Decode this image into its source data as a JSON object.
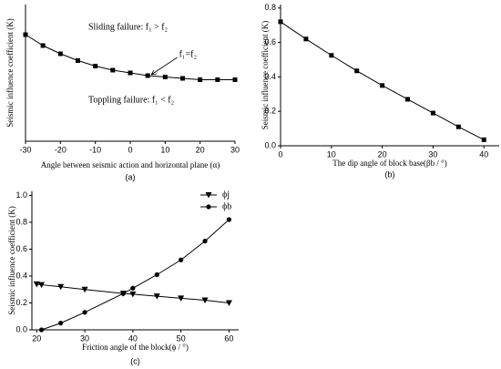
{
  "chart_data": [
    {
      "type": "line",
      "panel": "(a)",
      "xlabel": "Angle between seismic action and horizontal plane (α)",
      "ylabel": "Seismic influence coefficient (K)",
      "x": [
        -30,
        -25,
        -20,
        -15,
        -10,
        -5,
        0,
        5,
        10,
        15,
        20,
        25,
        30
      ],
      "series": [
        {
          "color": "#000000",
          "marker": "square",
          "values": [
            0.78,
            0.7,
            0.64,
            0.59,
            0.55,
            0.52,
            0.5,
            0.48,
            0.47,
            0.46,
            0.45,
            0.45,
            0.45
          ]
        }
      ],
      "xlim": [
        -30,
        30
      ],
      "xticks": [
        -30,
        -20,
        -10,
        0,
        10,
        20,
        30
      ],
      "ylim": [
        0,
        1
      ],
      "annotations": [
        "Sliding failure: f₁ > f₂",
        "f₁=f₂",
        "Toppling failure: f₁ < f₂"
      ]
    },
    {
      "type": "line",
      "panel": "(b)",
      "xlabel": "The dip angle of block base(βb / °)",
      "ylabel": "Seismic influence coefficient (K)",
      "x": [
        0,
        5,
        10,
        15,
        20,
        25,
        30,
        35,
        40
      ],
      "series": [
        {
          "color": "#000000",
          "marker": "square",
          "values": [
            0.72,
            0.62,
            0.525,
            0.435,
            0.35,
            0.27,
            0.19,
            0.11,
            0.035
          ]
        }
      ],
      "xlim": [
        0,
        43
      ],
      "xticks": [
        0,
        10,
        20,
        30,
        40
      ],
      "ylim": [
        0,
        0.82
      ],
      "yticks": [
        {
          "value": 0,
          "label": "0.0"
        },
        0.2,
        0.4,
        0.6,
        0.8
      ]
    },
    {
      "type": "line",
      "panel": "(c)",
      "xlabel": "Friction angle of the block(ϕ / °)",
      "ylabel": "Seismic influence coefficient (K)",
      "series": [
        {
          "name": "ϕj",
          "color": "#000000",
          "marker": "triangle",
          "x": [
            20,
            21,
            25,
            30,
            38,
            40,
            45,
            50,
            55,
            60
          ],
          "values": [
            0.34,
            0.335,
            0.32,
            0.3,
            0.27,
            0.265,
            0.25,
            0.235,
            0.22,
            0.2
          ]
        },
        {
          "name": "ϕb",
          "color": "#000000",
          "marker": "circle",
          "x": [
            21,
            25,
            30,
            38,
            40,
            45,
            50,
            55,
            60
          ],
          "values": [
            0.0,
            0.05,
            0.13,
            0.27,
            0.31,
            0.41,
            0.52,
            0.66,
            0.82
          ]
        }
      ],
      "xlim": [
        19,
        62
      ],
      "xticks": [
        20,
        30,
        40,
        50,
        60
      ],
      "ylim": [
        0,
        1.03
      ],
      "yticks": [
        {
          "value": 0,
          "label": "0.0"
        },
        0.2,
        0.4,
        0.6,
        0.8,
        {
          "value": 1,
          "label": "1.0"
        }
      ],
      "legend": "upper right"
    }
  ]
}
